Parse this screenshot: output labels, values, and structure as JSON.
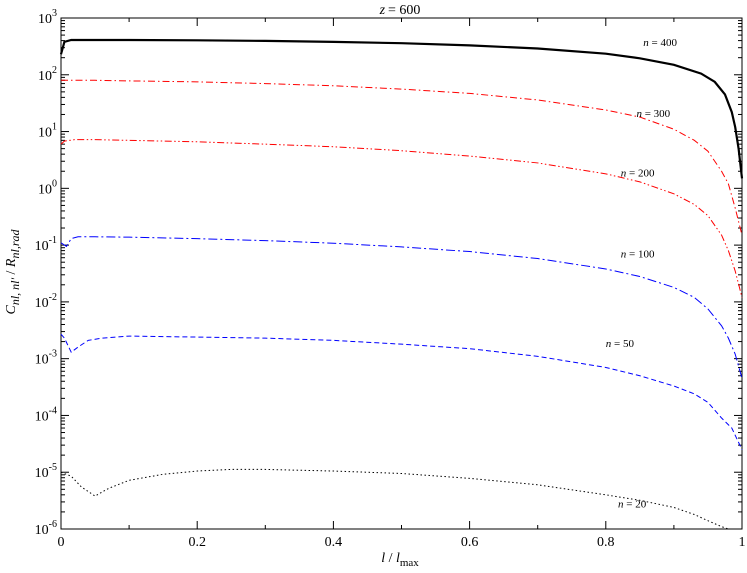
{
  "chart_data": {
    "type": "line",
    "title_var": "z",
    "title_value": "= 600",
    "xlabel_num": "l",
    "xlabel_sep": " / ",
    "xlabel_den": "l",
    "xlabel_den_sub": "max",
    "ylabel": {
      "main": "C",
      "sub1": "nl, nl'",
      "sep": " / ",
      "main2": "R",
      "sub2": "nl,rad"
    },
    "xlim": [
      0,
      1
    ],
    "ylim": [
      1e-06,
      1000
    ],
    "yscale": "log",
    "grid": false,
    "xticks": [
      {
        "v": 0,
        "label": "0"
      },
      {
        "v": 0.2,
        "label": "0.2"
      },
      {
        "v": 0.4,
        "label": "0.4"
      },
      {
        "v": 0.6,
        "label": "0.6"
      },
      {
        "v": 0.8,
        "label": "0.8"
      },
      {
        "v": 1,
        "label": "1"
      }
    ],
    "yticks": [
      {
        "exp": -6,
        "base": "10",
        "sup": "-6"
      },
      {
        "exp": -5,
        "base": "10",
        "sup": "-5"
      },
      {
        "exp": -4,
        "base": "10",
        "sup": "-4"
      },
      {
        "exp": -3,
        "base": "10",
        "sup": "-3"
      },
      {
        "exp": -2,
        "base": "10",
        "sup": "-2"
      },
      {
        "exp": -1,
        "base": "10",
        "sup": "-1"
      },
      {
        "exp": 0,
        "base": "10",
        "sup": "0"
      },
      {
        "exp": 1,
        "base": "10",
        "sup": "1"
      },
      {
        "exp": 2,
        "base": "10",
        "sup": "2"
      },
      {
        "exp": 3,
        "base": "10",
        "sup": "3"
      }
    ],
    "series": [
      {
        "name": "n = 400",
        "n": "400",
        "color": "#000000",
        "width": 2.2,
        "dash": "",
        "label_at": [
          0.855,
          320
        ],
        "points": [
          [
            0,
            230
          ],
          [
            0.005,
            380
          ],
          [
            0.015,
            410
          ],
          [
            0.05,
            410
          ],
          [
            0.1,
            410
          ],
          [
            0.2,
            405
          ],
          [
            0.3,
            395
          ],
          [
            0.4,
            380
          ],
          [
            0.5,
            360
          ],
          [
            0.6,
            330
          ],
          [
            0.7,
            290
          ],
          [
            0.8,
            235
          ],
          [
            0.85,
            195
          ],
          [
            0.9,
            150
          ],
          [
            0.94,
            105
          ],
          [
            0.96,
            75
          ],
          [
            0.975,
            45
          ],
          [
            0.985,
            22
          ],
          [
            0.99,
            12
          ],
          [
            0.995,
            5
          ],
          [
            1.0,
            1.5
          ]
        ]
      },
      {
        "name": "n = 300",
        "n": "300",
        "color": "#ff0000",
        "width": 1,
        "dash": "7,3,1.5,3",
        "label_at": [
          0.845,
          18
        ],
        "points": [
          [
            0,
            80
          ],
          [
            0.05,
            80
          ],
          [
            0.1,
            78
          ],
          [
            0.2,
            75
          ],
          [
            0.3,
            70
          ],
          [
            0.4,
            64
          ],
          [
            0.5,
            56
          ],
          [
            0.6,
            47
          ],
          [
            0.7,
            36
          ],
          [
            0.8,
            24
          ],
          [
            0.85,
            18
          ],
          [
            0.9,
            11
          ],
          [
            0.93,
            7
          ],
          [
            0.95,
            4.5
          ],
          [
            0.97,
            2
          ],
          [
            0.98,
            1.2
          ],
          [
            0.99,
            0.45
          ],
          [
            1.0,
            0.15
          ]
        ]
      },
      {
        "name": "n = 200",
        "n": "200",
        "color": "#ff0000",
        "width": 1,
        "dash": "7,2.5,1.5,2.5,1.5,2.5",
        "label_at": [
          0.822,
          1.6
        ],
        "points": [
          [
            0,
            6
          ],
          [
            0.005,
            6.8
          ],
          [
            0.02,
            7.2
          ],
          [
            0.05,
            7.2
          ],
          [
            0.1,
            7
          ],
          [
            0.2,
            6.6
          ],
          [
            0.3,
            6
          ],
          [
            0.4,
            5.4
          ],
          [
            0.5,
            4.6
          ],
          [
            0.6,
            3.7
          ],
          [
            0.7,
            2.8
          ],
          [
            0.8,
            1.8
          ],
          [
            0.85,
            1.3
          ],
          [
            0.9,
            0.8
          ],
          [
            0.93,
            0.52
          ],
          [
            0.95,
            0.33
          ],
          [
            0.97,
            0.15
          ],
          [
            0.98,
            0.08
          ],
          [
            0.99,
            0.035
          ],
          [
            1.0,
            0.012
          ]
        ]
      },
      {
        "name": "n = 100",
        "n": "100",
        "color": "#0000ff",
        "width": 1,
        "dash": "9,3,2,3",
        "label_at": [
          0.822,
          0.06
        ],
        "points": [
          [
            0,
            0.11
          ],
          [
            0.008,
            0.095
          ],
          [
            0.015,
            0.13
          ],
          [
            0.025,
            0.14
          ],
          [
            0.05,
            0.14
          ],
          [
            0.1,
            0.138
          ],
          [
            0.2,
            0.13
          ],
          [
            0.3,
            0.12
          ],
          [
            0.4,
            0.108
          ],
          [
            0.5,
            0.093
          ],
          [
            0.6,
            0.077
          ],
          [
            0.7,
            0.058
          ],
          [
            0.8,
            0.038
          ],
          [
            0.85,
            0.028
          ],
          [
            0.9,
            0.018
          ],
          [
            0.93,
            0.012
          ],
          [
            0.95,
            0.0075
          ],
          [
            0.97,
            0.0038
          ],
          [
            0.98,
            0.0023
          ],
          [
            0.99,
            0.0012
          ],
          [
            1.0,
            0.00045
          ]
        ]
      },
      {
        "name": "n = 50",
        "n": "50",
        "color": "#0000ff",
        "width": 1,
        "dash": "5,3",
        "label_at": [
          0.8,
          0.0016
        ],
        "points": [
          [
            0,
            0.0027
          ],
          [
            0.005,
            0.0023
          ],
          [
            0.015,
            0.0013
          ],
          [
            0.025,
            0.0016
          ],
          [
            0.04,
            0.0021
          ],
          [
            0.06,
            0.0023
          ],
          [
            0.1,
            0.0025
          ],
          [
            0.2,
            0.0024
          ],
          [
            0.3,
            0.0023
          ],
          [
            0.4,
            0.0021
          ],
          [
            0.5,
            0.0018
          ],
          [
            0.6,
            0.0015
          ],
          [
            0.7,
            0.0011
          ],
          [
            0.8,
            0.0007
          ],
          [
            0.85,
            0.0005
          ],
          [
            0.9,
            0.00033
          ],
          [
            0.93,
            0.00024
          ],
          [
            0.95,
            0.00017
          ],
          [
            0.97,
            9e-05
          ],
          [
            0.985,
            6e-05
          ],
          [
            1.0,
            2.5e-05
          ]
        ]
      },
      {
        "name": "n = 20",
        "n": "20",
        "color": "#000000",
        "width": 1,
        "dash": "1.5,2.5",
        "label_at": [
          0.818,
          2.4e-06
        ],
        "points": [
          [
            0,
            1e-05
          ],
          [
            0.015,
            8.5e-06
          ],
          [
            0.03,
            5.5e-06
          ],
          [
            0.05,
            3.8e-06
          ],
          [
            0.07,
            5.2e-06
          ],
          [
            0.1,
            7.2e-06
          ],
          [
            0.15,
            9.2e-06
          ],
          [
            0.2,
            1.05e-05
          ],
          [
            0.25,
            1.12e-05
          ],
          [
            0.3,
            1.12e-05
          ],
          [
            0.4,
            1.05e-05
          ],
          [
            0.5,
            9.5e-06
          ],
          [
            0.6,
            7.8e-06
          ],
          [
            0.7,
            6e-06
          ],
          [
            0.8,
            4e-06
          ],
          [
            0.85,
            3.2e-06
          ],
          [
            0.9,
            2.4e-06
          ],
          [
            0.93,
            1.8e-06
          ],
          [
            0.95,
            1.4e-06
          ],
          [
            0.97,
            1.1e-06
          ],
          [
            0.98,
            1e-06
          ]
        ]
      }
    ]
  }
}
